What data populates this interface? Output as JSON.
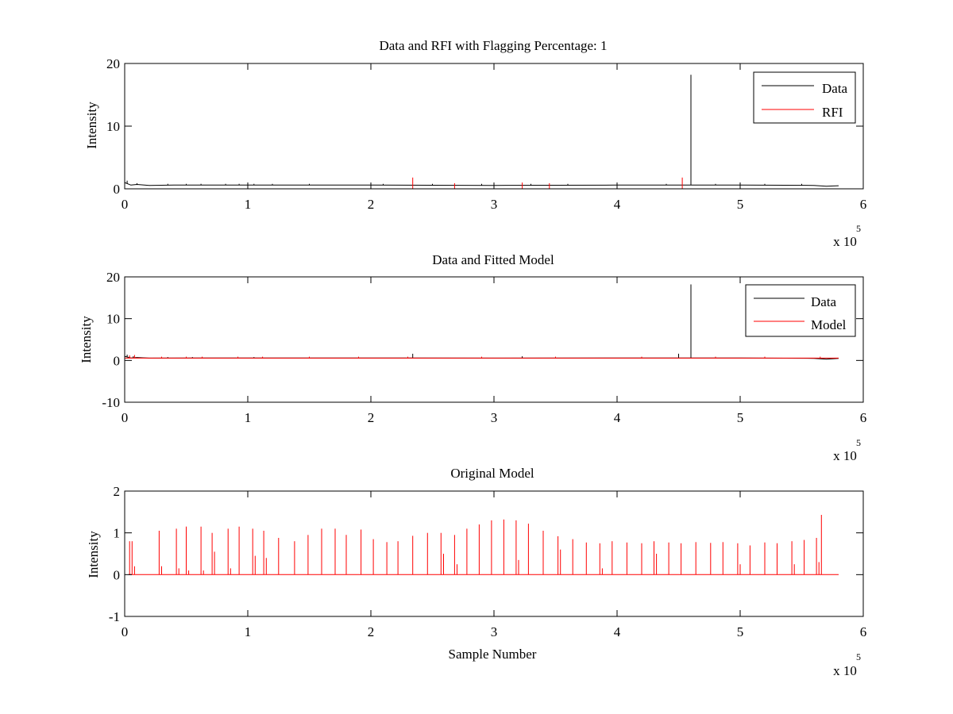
{
  "figure": {
    "background": "#ffffff",
    "axes_color": "#000000"
  },
  "chart_data": [
    {
      "type": "line",
      "title": "Data and RFI with Flagging Percentage: 1",
      "xlabel": "",
      "ylabel": "Intensity",
      "xlim": [
        0,
        6
      ],
      "ylim": [
        0,
        20
      ],
      "xticks": [
        "0",
        "1",
        "2",
        "3",
        "4",
        "5",
        "6"
      ],
      "yticks": [
        "0",
        "10",
        "20"
      ],
      "x_exponent": {
        "base": "x 10",
        "power": "5"
      },
      "grid": false,
      "legend_position": "top-right",
      "series": [
        {
          "name": "Data",
          "color": "#000000",
          "baseline": [
            [
              0.0,
              1.0
            ],
            [
              0.05,
              0.6
            ],
            [
              0.1,
              0.7
            ],
            [
              0.2,
              0.55
            ],
            [
              0.4,
              0.6
            ],
            [
              1.0,
              0.6
            ],
            [
              2.0,
              0.6
            ],
            [
              3.0,
              0.55
            ],
            [
              4.0,
              0.6
            ],
            [
              5.0,
              0.6
            ],
            [
              5.6,
              0.55
            ],
            [
              5.7,
              0.4
            ],
            [
              5.8,
              0.5
            ]
          ],
          "spikes": [
            [
              0.02,
              1.3
            ],
            [
              0.1,
              0.9
            ],
            [
              0.35,
              0.8
            ],
            [
              0.5,
              0.8
            ],
            [
              0.62,
              0.8
            ],
            [
              0.82,
              0.8
            ],
            [
              0.93,
              0.8
            ],
            [
              1.05,
              0.8
            ],
            [
              1.2,
              0.8
            ],
            [
              1.5,
              0.8
            ],
            [
              2.1,
              0.8
            ],
            [
              2.5,
              0.8
            ],
            [
              2.9,
              0.8
            ],
            [
              3.3,
              0.8
            ],
            [
              3.6,
              0.8
            ],
            [
              4.0,
              0.8
            ],
            [
              4.4,
              0.8
            ],
            [
              4.6,
              18.2
            ],
            [
              4.8,
              0.8
            ],
            [
              5.2,
              0.8
            ],
            [
              5.5,
              0.8
            ]
          ]
        },
        {
          "name": "RFI",
          "color": "#ff0000",
          "baseline": [],
          "spikes": [
            [
              2.34,
              1.8
            ],
            [
              2.68,
              0.9
            ],
            [
              3.23,
              1.0
            ],
            [
              3.45,
              0.9
            ],
            [
              4.53,
              1.8
            ]
          ]
        }
      ]
    },
    {
      "type": "line",
      "title": "Data and Fitted Model",
      "xlabel": "",
      "ylabel": "Intensity",
      "xlim": [
        0,
        6
      ],
      "ylim": [
        -10,
        20
      ],
      "xticks": [
        "0",
        "1",
        "2",
        "3",
        "4",
        "5",
        "6"
      ],
      "yticks": [
        "-10",
        "0",
        "10",
        "20"
      ],
      "x_exponent": {
        "base": "x 10",
        "power": "5"
      },
      "grid": false,
      "legend_position": "top-right",
      "series": [
        {
          "name": "Data",
          "color": "#000000",
          "baseline": [
            [
              0.0,
              1.0
            ],
            [
              0.05,
              0.6
            ],
            [
              0.1,
              0.7
            ],
            [
              0.2,
              0.55
            ],
            [
              1.0,
              0.6
            ],
            [
              2.0,
              0.6
            ],
            [
              3.0,
              0.55
            ],
            [
              4.0,
              0.6
            ],
            [
              5.0,
              0.6
            ],
            [
              5.6,
              0.5
            ],
            [
              5.7,
              0.3
            ],
            [
              5.8,
              0.5
            ]
          ],
          "spikes": [
            [
              0.02,
              1.4
            ],
            [
              0.07,
              1.0
            ],
            [
              0.35,
              0.8
            ],
            [
              0.55,
              0.8
            ],
            [
              1.05,
              0.8
            ],
            [
              2.34,
              1.6
            ],
            [
              3.23,
              1.0
            ],
            [
              4.5,
              1.6
            ],
            [
              4.6,
              18.2
            ],
            [
              5.2,
              0.8
            ]
          ]
        },
        {
          "name": "Model",
          "color": "#ff0000",
          "baseline": [
            [
              0.0,
              0.55
            ],
            [
              5.8,
              0.55
            ]
          ],
          "spikes": [
            [
              0.04,
              1.2
            ],
            [
              0.08,
              1.3
            ],
            [
              0.3,
              0.9
            ],
            [
              0.5,
              0.9
            ],
            [
              0.63,
              0.9
            ],
            [
              0.92,
              0.9
            ],
            [
              1.12,
              0.9
            ],
            [
              1.5,
              0.9
            ],
            [
              1.9,
              0.9
            ],
            [
              2.3,
              0.9
            ],
            [
              2.9,
              0.9
            ],
            [
              3.5,
              0.9
            ],
            [
              4.2,
              0.9
            ],
            [
              4.8,
              0.9
            ],
            [
              5.2,
              0.9
            ],
            [
              5.65,
              0.9
            ]
          ]
        }
      ]
    },
    {
      "type": "line",
      "title": "Original Model",
      "xlabel": "Sample Number",
      "ylabel": "Intensity",
      "xlim": [
        0,
        6
      ],
      "ylim": [
        -1,
        2
      ],
      "xticks": [
        "0",
        "1",
        "2",
        "3",
        "4",
        "5",
        "6"
      ],
      "yticks": [
        "-1",
        "0",
        "1",
        "2"
      ],
      "x_exponent": {
        "base": "x 10",
        "power": "5"
      },
      "grid": false,
      "legend_position": "none",
      "series": [
        {
          "color": "#ff0000",
          "baseline": [
            [
              0.03,
              0.0
            ],
            [
              5.8,
              0.0
            ]
          ],
          "spikes": [
            [
              0.04,
              0.8
            ],
            [
              0.06,
              0.8
            ],
            [
              0.08,
              0.2
            ],
            [
              0.28,
              1.05
            ],
            [
              0.3,
              0.2
            ],
            [
              0.42,
              1.1
            ],
            [
              0.44,
              0.15
            ],
            [
              0.5,
              1.15
            ],
            [
              0.52,
              0.1
            ],
            [
              0.62,
              1.15
            ],
            [
              0.64,
              0.1
            ],
            [
              0.71,
              1.0
            ],
            [
              0.73,
              0.55
            ],
            [
              0.84,
              1.1
            ],
            [
              0.86,
              0.15
            ],
            [
              0.93,
              1.15
            ],
            [
              1.04,
              1.1
            ],
            [
              1.06,
              0.45
            ],
            [
              1.13,
              1.05
            ],
            [
              1.15,
              0.4
            ],
            [
              1.25,
              0.88
            ],
            [
              1.38,
              0.8
            ],
            [
              1.49,
              0.95
            ],
            [
              1.6,
              1.1
            ],
            [
              1.71,
              1.1
            ],
            [
              1.8,
              0.95
            ],
            [
              1.92,
              1.08
            ],
            [
              2.02,
              0.85
            ],
            [
              2.13,
              0.78
            ],
            [
              2.22,
              0.8
            ],
            [
              2.34,
              0.93
            ],
            [
              2.46,
              1.0
            ],
            [
              2.57,
              1.0
            ],
            [
              2.59,
              0.5
            ],
            [
              2.68,
              0.95
            ],
            [
              2.7,
              0.25
            ],
            [
              2.78,
              1.1
            ],
            [
              2.88,
              1.2
            ],
            [
              2.98,
              1.3
            ],
            [
              3.08,
              1.32
            ],
            [
              3.18,
              1.3
            ],
            [
              3.2,
              0.35
            ],
            [
              3.28,
              1.22
            ],
            [
              3.4,
              1.05
            ],
            [
              3.52,
              0.92
            ],
            [
              3.54,
              0.6
            ],
            [
              3.64,
              0.85
            ],
            [
              3.75,
              0.77
            ],
            [
              3.86,
              0.75
            ],
            [
              3.88,
              0.15
            ],
            [
              3.96,
              0.8
            ],
            [
              4.08,
              0.77
            ],
            [
              4.2,
              0.75
            ],
            [
              4.3,
              0.8
            ],
            [
              4.32,
              0.5
            ],
            [
              4.42,
              0.77
            ],
            [
              4.52,
              0.75
            ],
            [
              4.64,
              0.78
            ],
            [
              4.76,
              0.76
            ],
            [
              4.86,
              0.78
            ],
            [
              4.98,
              0.75
            ],
            [
              5.0,
              0.25
            ],
            [
              5.08,
              0.7
            ],
            [
              5.2,
              0.77
            ],
            [
              5.3,
              0.75
            ],
            [
              5.42,
              0.8
            ],
            [
              5.44,
              0.25
            ],
            [
              5.52,
              0.83
            ],
            [
              5.62,
              0.88
            ],
            [
              5.64,
              0.3
            ],
            [
              5.66,
              1.43
            ]
          ]
        }
      ]
    }
  ]
}
